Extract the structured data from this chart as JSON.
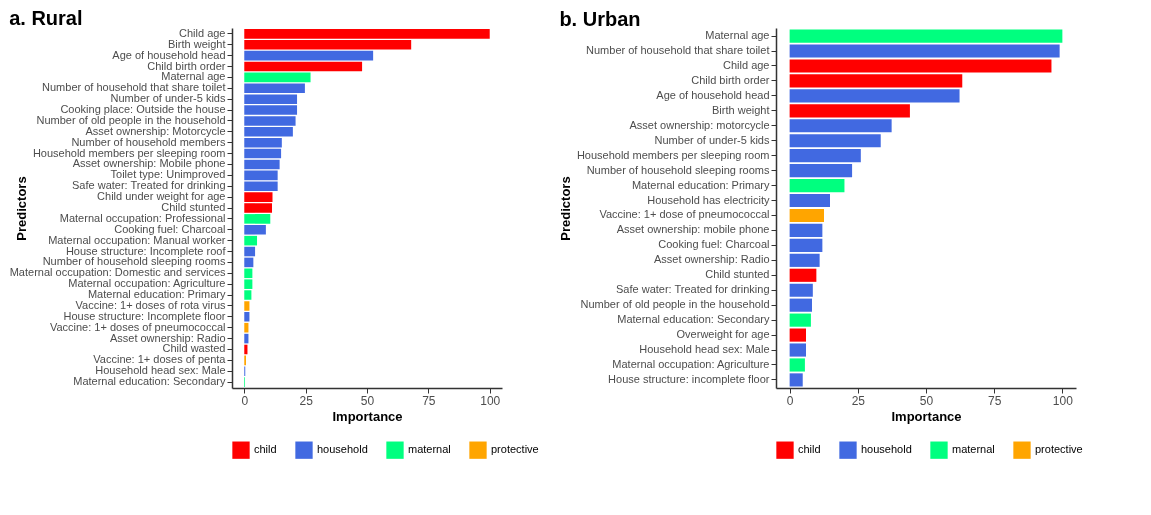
{
  "chart_data": [
    {
      "type": "bar",
      "orientation": "horizontal",
      "title": "a. Rural",
      "xlabel": "Importance",
      "ylabel": "Predictors",
      "categories": [
        "Child age",
        "Birth weight",
        "Age of household head",
        "Child birth order",
        "Maternal age",
        "Number of household that share toilet",
        "Number of under-5 kids",
        "Cooking place: Outside the house",
        "Number of old people in the household",
        "Asset ownership: Motorcycle",
        "Number of household members",
        "Household members per sleeping room",
        "Asset ownership: Mobile phone",
        "Toilet type: Unimproved",
        "Safe water: Treated for drinking",
        "Child under weight for age",
        "Child stunted",
        "Maternal occupation: Professional",
        "Cooking fuel: Charcoal",
        "Maternal occupation: Manual worker",
        "House structure: Incomplete roof",
        "Number of household sleeping rooms",
        "Maternal occupation: Domestic and services",
        "Maternal occupation: Agriculture",
        "Maternal education: Primary",
        "Vaccine: 1+ doses of rota virus",
        "House structure: Incomplete floor",
        "Vaccine: 1+ doses of pneumococcal",
        "Asset ownership: Radio",
        "Child wasted",
        "Vaccine: 1+ doses of penta",
        "Household head sex: Male",
        "Maternal education: Secondary"
      ],
      "series": [
        {
          "name": "child",
          "color": "#ff0000",
          "values": [
            100,
            68,
            null,
            48,
            null,
            null,
            null,
            null,
            null,
            null,
            null,
            null,
            null,
            null,
            null,
            11.5,
            11.3,
            null,
            null,
            null,
            null,
            null,
            null,
            null,
            null,
            null,
            null,
            null,
            null,
            1.3,
            null,
            null,
            null
          ]
        },
        {
          "name": "household",
          "color": "#4169e1",
          "values": [
            null,
            null,
            52.5,
            null,
            null,
            24.7,
            21.5,
            21.5,
            20.9,
            19.8,
            15.3,
            15,
            14.4,
            13.6,
            13.6,
            null,
            null,
            null,
            8.8,
            null,
            4.4,
            3.7,
            null,
            null,
            null,
            null,
            2.1,
            null,
            1.7,
            null,
            null,
            0.4,
            null
          ]
        },
        {
          "name": "maternal",
          "color": "#00ff7f",
          "values": [
            null,
            null,
            null,
            null,
            27,
            null,
            null,
            null,
            null,
            null,
            null,
            null,
            null,
            null,
            null,
            null,
            null,
            10.6,
            null,
            5.2,
            null,
            null,
            3.3,
            3.3,
            2.9,
            null,
            null,
            null,
            null,
            null,
            null,
            null,
            0.3
          ]
        },
        {
          "name": "protective",
          "color": "#ffa500",
          "values": [
            null,
            null,
            null,
            null,
            null,
            null,
            null,
            null,
            null,
            null,
            null,
            null,
            null,
            null,
            null,
            null,
            null,
            null,
            null,
            null,
            null,
            null,
            null,
            null,
            null,
            2.1,
            null,
            1.7,
            null,
            null,
            0.7,
            null,
            null
          ]
        }
      ],
      "xlim": [
        -5,
        105
      ],
      "xticks": [
        0,
        25,
        50,
        75,
        100
      ],
      "grid": false,
      "legend": "bottom"
    },
    {
      "type": "bar",
      "orientation": "horizontal",
      "title": "b. Urban",
      "xlabel": "Importance",
      "ylabel": "Predictors",
      "categories": [
        "Maternal age",
        "Number of household that share toilet",
        "Child age",
        "Child birth order",
        "Age of household head",
        "Birth weight",
        "Asset ownership: motorcycle",
        "Number of under-5 kids",
        "Household members per sleeping room",
        "Number of household sleeping rooms",
        "Maternal education: Primary",
        "Household has electricity",
        "Vaccine: 1+ dose of pneumococcal",
        "Asset ownership: mobile phone",
        "Cooking fuel: Charcoal",
        "Asset ownership: Radio",
        "Child stunted",
        "Safe water: Treated for drinking",
        "Number of old people in the household",
        "Maternal education: Secondary",
        "Overweight for age",
        "Household head sex: Male",
        "Maternal occupation: Agriculture",
        "House structure: incomplete floor"
      ],
      "series": [
        {
          "name": "child",
          "color": "#ff0000",
          "values": [
            null,
            null,
            96,
            63.3,
            null,
            44.1,
            null,
            null,
            null,
            null,
            null,
            null,
            null,
            null,
            null,
            null,
            9.8,
            null,
            null,
            null,
            6,
            null,
            null,
            null
          ]
        },
        {
          "name": "household",
          "color": "#4169e1",
          "values": [
            null,
            99,
            null,
            null,
            62.3,
            null,
            37.4,
            33.4,
            26.1,
            22.9,
            null,
            14.8,
            null,
            12,
            12,
            11,
            null,
            8.5,
            8.2,
            null,
            null,
            6,
            null,
            4.8
          ]
        },
        {
          "name": "maternal",
          "color": "#00ff7f",
          "values": [
            100,
            null,
            null,
            null,
            null,
            null,
            null,
            null,
            null,
            null,
            20.1,
            null,
            null,
            null,
            null,
            null,
            null,
            null,
            null,
            7.8,
            null,
            null,
            5.6,
            null
          ]
        },
        {
          "name": "protective",
          "color": "#ffa500",
          "values": [
            null,
            null,
            null,
            null,
            null,
            null,
            null,
            null,
            null,
            null,
            null,
            null,
            12.6,
            null,
            null,
            null,
            null,
            null,
            null,
            null,
            null,
            null,
            null,
            null
          ]
        }
      ],
      "xlim": [
        -5,
        105
      ],
      "xticks": [
        0,
        25,
        50,
        75,
        100
      ],
      "grid": false,
      "legend": "bottom"
    }
  ]
}
